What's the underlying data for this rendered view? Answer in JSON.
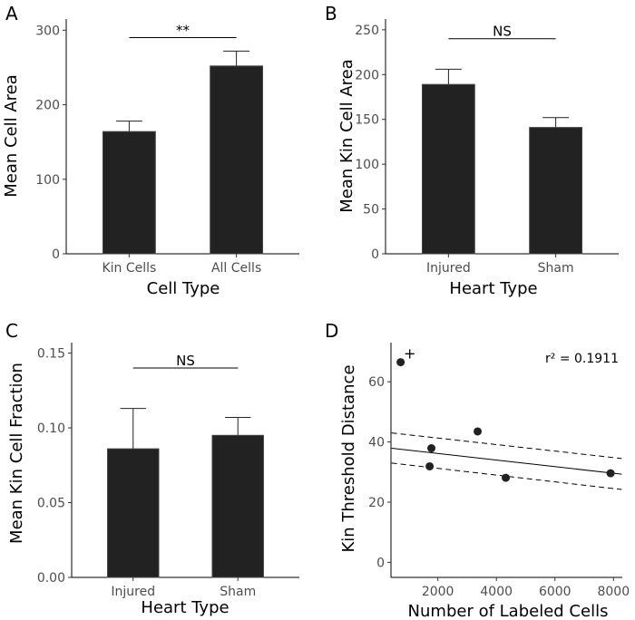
{
  "chart_data": [
    {
      "panel": "A",
      "type": "bar",
      "categories": [
        "Kin Cells",
        "All Cells"
      ],
      "values": [
        164,
        252
      ],
      "error_upper": [
        178,
        272
      ],
      "xlabel": "Cell Type",
      "ylabel": "Mean Cell Area",
      "ylim": [
        0,
        315
      ],
      "yticks": [
        0,
        100,
        200,
        300
      ],
      "yticklabels": [
        "0",
        "100",
        "200",
        "300"
      ],
      "significance": {
        "label": "**",
        "y": 290
      },
      "bar_color": "#222222"
    },
    {
      "panel": "B",
      "type": "bar",
      "categories": [
        "Injured",
        "Sham"
      ],
      "values": [
        189,
        141
      ],
      "error_upper": [
        206,
        152
      ],
      "xlabel": "Heart Type",
      "ylabel": "Mean Kin Cell Area",
      "ylim": [
        0,
        262
      ],
      "yticks": [
        0,
        50,
        100,
        150,
        200,
        250
      ],
      "yticklabels": [
        "0",
        "50",
        "100",
        "150",
        "200",
        "250"
      ],
      "significance": {
        "label": "NS",
        "y": 240
      },
      "bar_color": "#222222"
    },
    {
      "panel": "C",
      "type": "bar",
      "categories": [
        "Injured",
        "Sham"
      ],
      "values": [
        0.086,
        0.095
      ],
      "error_upper": [
        0.113,
        0.107
      ],
      "xlabel": "Heart Type",
      "ylabel": "Mean Kin Cell Fraction",
      "ylim": [
        0,
        0.157
      ],
      "yticks": [
        0,
        0.05,
        0.1,
        0.15
      ],
      "yticklabels": [
        "0.00",
        "0.05",
        "0.10",
        "0.15"
      ],
      "significance": {
        "label": "NS",
        "y": 0.14
      },
      "bar_color": "#222222"
    },
    {
      "panel": "D",
      "type": "scatter",
      "xlabel": "Number of Labeled Cells",
      "ylabel": "Kin Threshold Distance",
      "xlim": [
        400,
        8300
      ],
      "ylim": [
        -5,
        73
      ],
      "xticks": [
        2000,
        4000,
        6000,
        8000
      ],
      "xticklabels": [
        "2000",
        "4000",
        "6000",
        "8000"
      ],
      "yticks": [
        0,
        20,
        40,
        60
      ],
      "yticklabels": [
        "0",
        "20",
        "40",
        "60"
      ],
      "points": [
        {
          "x": 730,
          "y": 66.5
        },
        {
          "x": 1780,
          "y": 37.9
        },
        {
          "x": 1720,
          "y": 31.9
        },
        {
          "x": 3360,
          "y": 43.5
        },
        {
          "x": 4320,
          "y": 28.1
        },
        {
          "x": 7900,
          "y": 29.6
        }
      ],
      "outlier_marker": "+",
      "fit": {
        "x": [
          420,
          8280
        ],
        "y": [
          37.9,
          29.3
        ]
      },
      "ci_upper": {
        "x": [
          420,
          8280
        ],
        "y": [
          43.0,
          34.5
        ]
      },
      "ci_lower": {
        "x": [
          420,
          8280
        ],
        "y": [
          33.0,
          24.2
        ]
      },
      "annotation": "r² = 0.1911"
    }
  ]
}
